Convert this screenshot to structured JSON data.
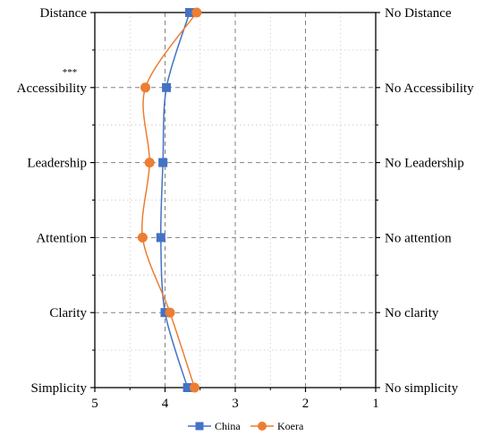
{
  "chart_data": {
    "type": "line",
    "orientation": "vertical-profile",
    "categories_left": [
      "Distance",
      "Accessibility",
      "Leadership",
      "Attention",
      "Clarity",
      "Simplicity"
    ],
    "categories_right": [
      "No Distance",
      "No Accessibility",
      "No Leadership",
      "No attention",
      "No clarity",
      "No simplicity"
    ],
    "x_ticks": [
      "5",
      "4",
      "3",
      "2",
      "1"
    ],
    "xlim": [
      5,
      1
    ],
    "x_reversed": true,
    "grid": true,
    "significance_marks": [
      {
        "category": "Accessibility",
        "text": "***"
      }
    ],
    "series": [
      {
        "name": "China",
        "color": "#4472c4",
        "marker": "square",
        "values": [
          3.65,
          3.98,
          4.03,
          4.06,
          4.0,
          3.68
        ]
      },
      {
        "name": "Koera",
        "color": "#ed7d31",
        "marker": "circle",
        "values": [
          3.55,
          4.28,
          4.22,
          4.32,
          3.93,
          3.58
        ]
      }
    ],
    "legend": {
      "position": "bottom-center"
    }
  }
}
